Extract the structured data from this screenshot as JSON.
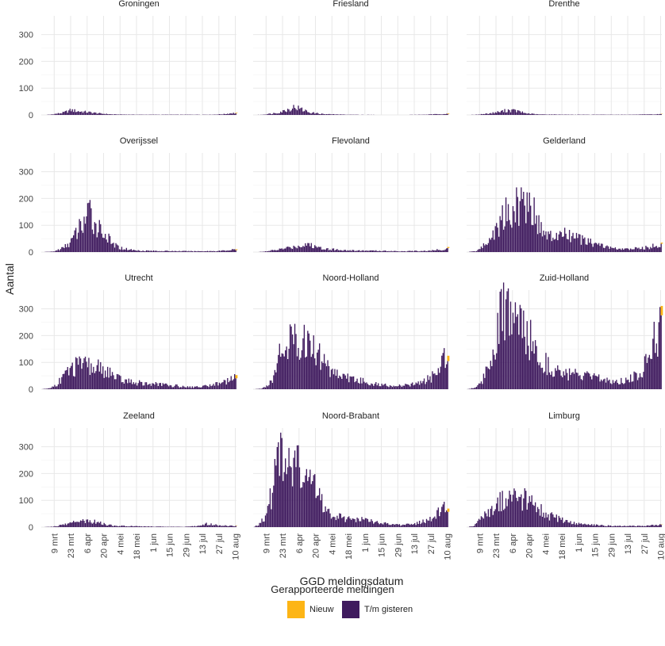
{
  "chart_data": {
    "type": "bar",
    "layout": "facet-grid 4x3",
    "stacked": true,
    "xlabel": "GGD meldingsdatum",
    "ylabel": "Aantal",
    "ylim": [
      0,
      370
    ],
    "yticks": [
      0,
      100,
      200,
      300
    ],
    "x_range": [
      "27 feb",
      "11 aug"
    ],
    "xticks": [
      "9 mrt",
      "23 mrt",
      "6 apr",
      "20 apr",
      "4 mei",
      "18 mei",
      "1 jun",
      "15 jun",
      "29 jun",
      "13 jul",
      "27 jul",
      "10 aug"
    ],
    "xtick_days": [
      11,
      25,
      39,
      53,
      67,
      81,
      95,
      109,
      123,
      137,
      151,
      165
    ],
    "n_days": 166,
    "legend": {
      "title": "Gerapporteerde meldingen",
      "position": "bottom",
      "entries": [
        {
          "name": "Nieuw",
          "color": "#FDB515"
        },
        {
          "name": "T/m gisteren",
          "color": "#3F1A5E"
        }
      ]
    },
    "panels": [
      {
        "title": "Groningen",
        "nieuw_last": 2,
        "profile": [
          [
            0,
            0
          ],
          [
            7,
            1
          ],
          [
            18,
            8
          ],
          [
            25,
            18
          ],
          [
            30,
            14
          ],
          [
            40,
            10
          ],
          [
            50,
            5
          ],
          [
            60,
            2
          ],
          [
            80,
            1
          ],
          [
            120,
            1
          ],
          [
            145,
            1
          ],
          [
            155,
            3
          ],
          [
            162,
            7
          ],
          [
            165,
            6
          ]
        ]
      },
      {
        "title": "Friesland",
        "nieuw_last": 2,
        "profile": [
          [
            0,
            0
          ],
          [
            8,
            1
          ],
          [
            20,
            8
          ],
          [
            28,
            18
          ],
          [
            35,
            30
          ],
          [
            40,
            22
          ],
          [
            48,
            9
          ],
          [
            60,
            3
          ],
          [
            80,
            1
          ],
          [
            120,
            0
          ],
          [
            145,
            1
          ],
          [
            158,
            3
          ],
          [
            165,
            5
          ]
        ]
      },
      {
        "title": "Drenthe",
        "nieuw_last": 1,
        "profile": [
          [
            0,
            0
          ],
          [
            8,
            1
          ],
          [
            20,
            6
          ],
          [
            28,
            12
          ],
          [
            35,
            18
          ],
          [
            42,
            15
          ],
          [
            50,
            6
          ],
          [
            60,
            2
          ],
          [
            90,
            1
          ],
          [
            140,
            1
          ],
          [
            160,
            2
          ],
          [
            165,
            3
          ]
        ]
      },
      {
        "title": "Overijssel",
        "nieuw_last": 3,
        "profile": [
          [
            0,
            0
          ],
          [
            10,
            2
          ],
          [
            18,
            15
          ],
          [
            24,
            35
          ],
          [
            28,
            60
          ],
          [
            32,
            90
          ],
          [
            38,
            128
          ],
          [
            41,
            145
          ],
          [
            45,
            105
          ],
          [
            50,
            88
          ],
          [
            55,
            60
          ],
          [
            60,
            30
          ],
          [
            67,
            15
          ],
          [
            80,
            6
          ],
          [
            100,
            4
          ],
          [
            130,
            3
          ],
          [
            150,
            4
          ],
          [
            160,
            7
          ],
          [
            165,
            10
          ]
        ]
      },
      {
        "title": "Flevoland",
        "nieuw_last": 4,
        "profile": [
          [
            0,
            0
          ],
          [
            10,
            2
          ],
          [
            22,
            10
          ],
          [
            32,
            18
          ],
          [
            40,
            24
          ],
          [
            46,
            32
          ],
          [
            50,
            22
          ],
          [
            60,
            14
          ],
          [
            70,
            9
          ],
          [
            80,
            6
          ],
          [
            100,
            5
          ],
          [
            130,
            3
          ],
          [
            150,
            5
          ],
          [
            160,
            10
          ],
          [
            165,
            12
          ]
        ]
      },
      {
        "title": "Gelderland",
        "nieuw_last": 4,
        "profile": [
          [
            0,
            0
          ],
          [
            8,
            4
          ],
          [
            16,
            30
          ],
          [
            22,
            65
          ],
          [
            28,
            110
          ],
          [
            34,
            150
          ],
          [
            40,
            165
          ],
          [
            46,
            175
          ],
          [
            50,
            195
          ],
          [
            53,
            200
          ],
          [
            58,
            130
          ],
          [
            64,
            80
          ],
          [
            70,
            55
          ],
          [
            78,
            60
          ],
          [
            84,
            65
          ],
          [
            92,
            55
          ],
          [
            100,
            40
          ],
          [
            110,
            30
          ],
          [
            120,
            18
          ],
          [
            130,
            10
          ],
          [
            140,
            12
          ],
          [
            150,
            15
          ],
          [
            158,
            22
          ],
          [
            165,
            28
          ]
        ]
      },
      {
        "title": "Utrecht",
        "nieuw_last": 12,
        "profile": [
          [
            0,
            0
          ],
          [
            6,
            3
          ],
          [
            12,
            15
          ],
          [
            18,
            45
          ],
          [
            24,
            75
          ],
          [
            30,
            85
          ],
          [
            36,
            88
          ],
          [
            42,
            80
          ],
          [
            50,
            78
          ],
          [
            58,
            60
          ],
          [
            64,
            40
          ],
          [
            72,
            30
          ],
          [
            80,
            25
          ],
          [
            90,
            20
          ],
          [
            100,
            18
          ],
          [
            110,
            14
          ],
          [
            120,
            10
          ],
          [
            130,
            8
          ],
          [
            140,
            12
          ],
          [
            150,
            22
          ],
          [
            160,
            35
          ],
          [
            165,
            40
          ]
        ]
      },
      {
        "title": "Noord-Holland",
        "nieuw_last": 20,
        "profile": [
          [
            0,
            0
          ],
          [
            6,
            2
          ],
          [
            12,
            15
          ],
          [
            18,
            55
          ],
          [
            22,
            130
          ],
          [
            26,
            190
          ],
          [
            32,
            175
          ],
          [
            38,
            185
          ],
          [
            42,
            190
          ],
          [
            48,
            160
          ],
          [
            52,
            150
          ],
          [
            58,
            110
          ],
          [
            64,
            80
          ],
          [
            72,
            55
          ],
          [
            82,
            40
          ],
          [
            92,
            30
          ],
          [
            102,
            20
          ],
          [
            112,
            15
          ],
          [
            122,
            12
          ],
          [
            132,
            15
          ],
          [
            142,
            25
          ],
          [
            150,
            40
          ],
          [
            156,
            60
          ],
          [
            160,
            100
          ],
          [
            163,
            140
          ],
          [
            165,
            150
          ]
        ]
      },
      {
        "title": "Zuid-Holland",
        "nieuw_last": 35,
        "profile": [
          [
            0,
            0
          ],
          [
            6,
            5
          ],
          [
            12,
            25
          ],
          [
            18,
            80
          ],
          [
            22,
            150
          ],
          [
            26,
            220
          ],
          [
            30,
            290
          ],
          [
            34,
            280
          ],
          [
            38,
            260
          ],
          [
            42,
            250
          ],
          [
            46,
            230
          ],
          [
            50,
            200
          ],
          [
            54,
            180
          ],
          [
            58,
            150
          ],
          [
            64,
            110
          ],
          [
            72,
            80
          ],
          [
            80,
            60
          ],
          [
            88,
            55
          ],
          [
            96,
            50
          ],
          [
            104,
            45
          ],
          [
            114,
            38
          ],
          [
            124,
            30
          ],
          [
            134,
            32
          ],
          [
            144,
            50
          ],
          [
            150,
            80
          ],
          [
            154,
            120
          ],
          [
            158,
            180
          ],
          [
            162,
            220
          ],
          [
            165,
            230
          ]
        ]
      },
      {
        "title": "Zeeland",
        "nieuw_last": 1,
        "profile": [
          [
            0,
            0
          ],
          [
            10,
            2
          ],
          [
            18,
            8
          ],
          [
            26,
            18
          ],
          [
            34,
            22
          ],
          [
            40,
            26
          ],
          [
            46,
            20
          ],
          [
            54,
            10
          ],
          [
            64,
            5
          ],
          [
            80,
            3
          ],
          [
            100,
            2
          ],
          [
            120,
            1
          ],
          [
            134,
            4
          ],
          [
            140,
            12
          ],
          [
            148,
            8
          ],
          [
            156,
            5
          ],
          [
            165,
            4
          ]
        ]
      },
      {
        "title": "Noord-Brabant",
        "nieuw_last": 12,
        "profile": [
          [
            0,
            0
          ],
          [
            4,
            10
          ],
          [
            10,
            40
          ],
          [
            16,
            130
          ],
          [
            19,
            200
          ],
          [
            21,
            260
          ],
          [
            24,
            250
          ],
          [
            28,
            240
          ],
          [
            32,
            220
          ],
          [
            36,
            230
          ],
          [
            40,
            200
          ],
          [
            44,
            190
          ],
          [
            48,
            170
          ],
          [
            52,
            150
          ],
          [
            56,
            110
          ],
          [
            62,
            60
          ],
          [
            70,
            40
          ],
          [
            78,
            30
          ],
          [
            88,
            28
          ],
          [
            96,
            25
          ],
          [
            104,
            20
          ],
          [
            114,
            12
          ],
          [
            124,
            8
          ],
          [
            134,
            10
          ],
          [
            144,
            20
          ],
          [
            152,
            35
          ],
          [
            158,
            55
          ],
          [
            162,
            70
          ],
          [
            165,
            75
          ]
        ]
      },
      {
        "title": "Limburg",
        "nieuw_last": 1,
        "profile": [
          [
            0,
            0
          ],
          [
            6,
            5
          ],
          [
            12,
            30
          ],
          [
            18,
            60
          ],
          [
            24,
            85
          ],
          [
            30,
            105
          ],
          [
            36,
            115
          ],
          [
            42,
            110
          ],
          [
            48,
            105
          ],
          [
            54,
            90
          ],
          [
            60,
            70
          ],
          [
            66,
            50
          ],
          [
            74,
            35
          ],
          [
            82,
            25
          ],
          [
            92,
            15
          ],
          [
            102,
            10
          ],
          [
            112,
            7
          ],
          [
            122,
            5
          ],
          [
            134,
            4
          ],
          [
            146,
            4
          ],
          [
            156,
            6
          ],
          [
            165,
            8
          ]
        ]
      }
    ]
  }
}
